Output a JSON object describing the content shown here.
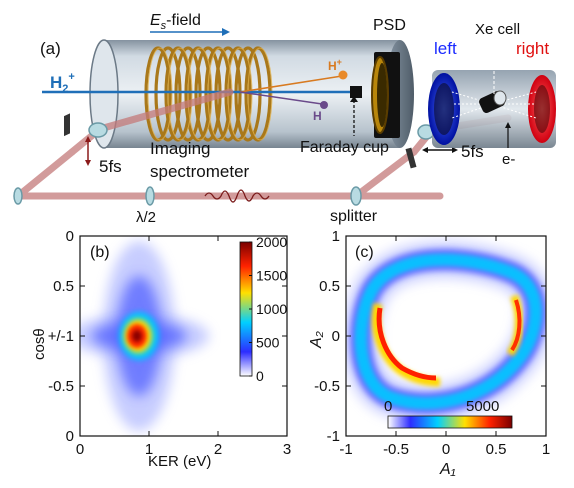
{
  "panel_a": {
    "label": "(a)",
    "field_label": "E",
    "field_sub": "s",
    "field_suffix": "-field",
    "beam_label": "H",
    "beam_sub": "2",
    "beam_sup": "+",
    "hplus_label": "H",
    "hplus_sup": "+",
    "h_label": "H",
    "psd_label": "PSD",
    "faraday_label": "Faraday cup",
    "pulse_left": "5fs",
    "pulse_right": "5fs",
    "imaging_line1": "Imaging",
    "imaging_line2": "spectrometer",
    "halfwave_label": "λ/2",
    "splitter_label": "splitter",
    "xe_label": "Xe cell",
    "left_label": "left",
    "right_label": "right",
    "electron_label": "e-"
  },
  "chart_data": [
    {
      "type": "heatmap",
      "panel": "(b)",
      "xlabel": "KER (eV)",
      "ylabel": "cosθ",
      "xlim": [
        0,
        3
      ],
      "ylim": [
        -1,
        1
      ],
      "xticks": [
        "0",
        "1",
        "2",
        "3"
      ],
      "yticks": [
        "0",
        "0.5",
        "+/-1",
        "-0.5",
        "0"
      ],
      "colorbar": {
        "min": 0,
        "max": 2000,
        "ticks": [
          "2000",
          "1500",
          "1000",
          "500",
          "0"
        ]
      },
      "peak": {
        "x": 0.8,
        "y": 1,
        "value": 2000
      },
      "colors": [
        "#ffffff",
        "#2d2dff",
        "#00d0ff",
        "#ffe000",
        "#ff2200",
        "#7a0000"
      ]
    },
    {
      "type": "heatmap",
      "panel": "(c)",
      "xlabel": "A₁",
      "ylabel": "A₂",
      "xlim": [
        -1,
        1
      ],
      "ylim": [
        -1,
        1
      ],
      "xticks": [
        "-1",
        "-0.5",
        "0",
        "0.5",
        "1"
      ],
      "yticks": [
        "1",
        "0.5",
        "0",
        "-0.5",
        "-1"
      ],
      "colorbar": {
        "min": 0,
        "max": 5000,
        "ticks": [
          "0",
          "5000"
        ]
      },
      "colors": [
        "#ffffff",
        "#2d2dff",
        "#00d0ff",
        "#ffe000",
        "#ff2200",
        "#7a0000"
      ]
    }
  ]
}
